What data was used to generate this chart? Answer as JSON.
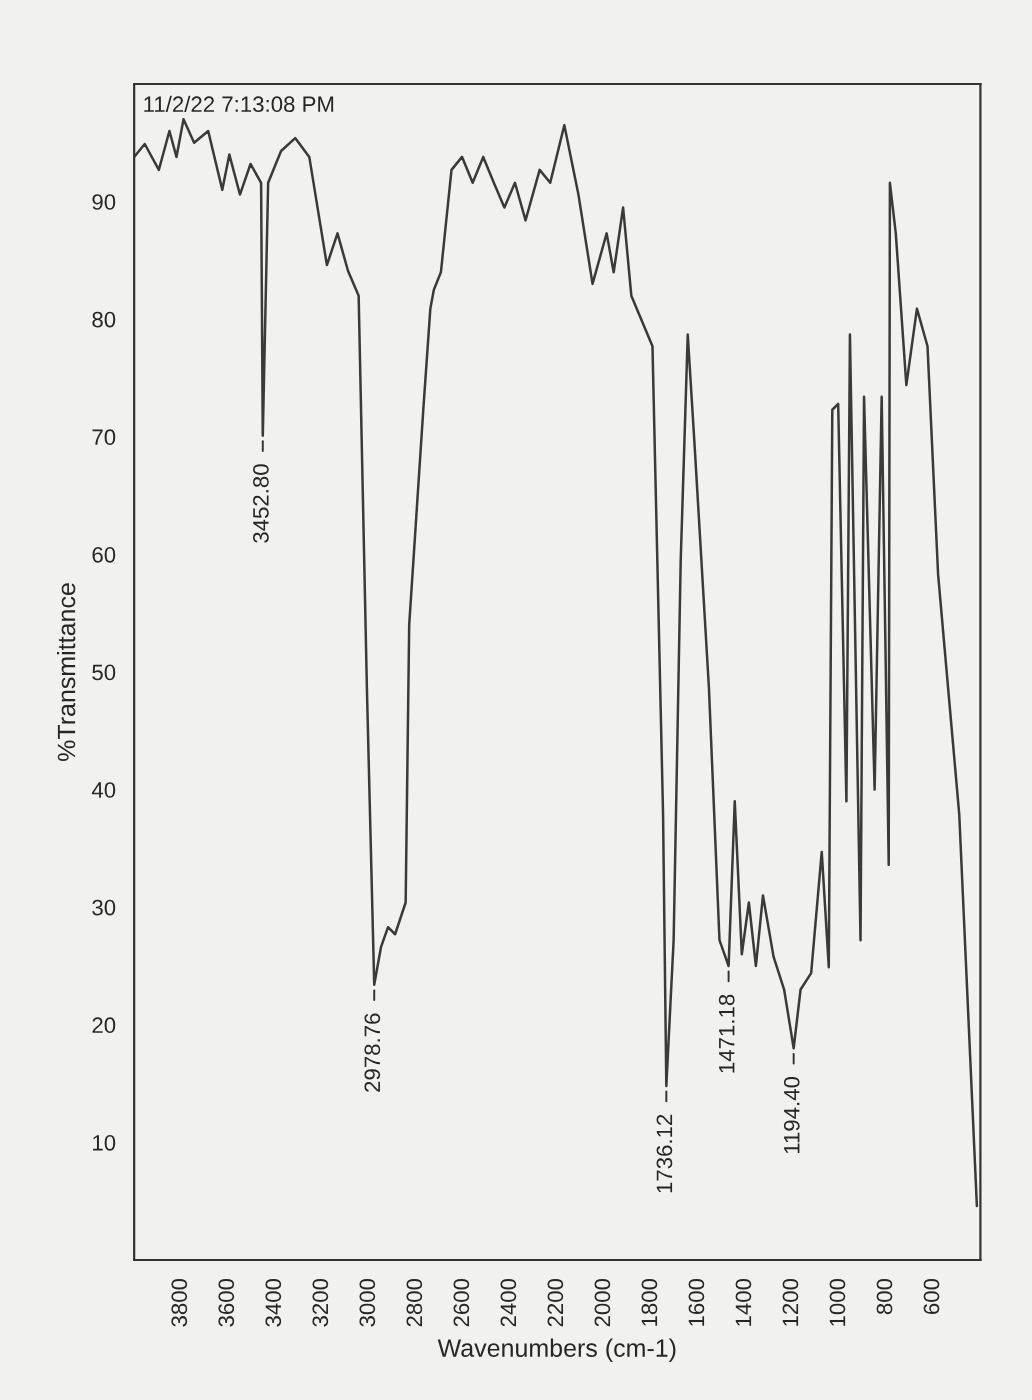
{
  "chart_data": {
    "type": "line",
    "xlabel": "Wavenumbers (cm-1)",
    "ylabel": "%Transmittance",
    "x": [
      4000,
      3955,
      3895,
      3850,
      3820,
      3790,
      3745,
      3685,
      3625,
      3595,
      3550,
      3505,
      3460,
      3452.8,
      3430,
      3375,
      3315,
      3255,
      3180,
      3135,
      3090,
      3045,
      3010,
      2978.76,
      2950,
      2920,
      2890,
      2845,
      2830,
      2770,
      2740,
      2725,
      2695,
      2650,
      2605,
      2560,
      2515,
      2470,
      2425,
      2380,
      2335,
      2275,
      2230,
      2170,
      2110,
      2050,
      1990,
      1960,
      1920,
      1885,
      1795,
      1750,
      1736.12,
      1705,
      1675,
      1645,
      1615,
      1555,
      1510,
      1471.18,
      1445,
      1415,
      1385,
      1355,
      1325,
      1280,
      1235,
      1194.4,
      1165,
      1120,
      1075,
      1045,
      1030,
      1005,
      970,
      955,
      910,
      895,
      850,
      820,
      790,
      785,
      760,
      715,
      670,
      625,
      580,
      490,
      415
    ],
    "series": [
      {
        "color": "#3a3a3a",
        "values": [
          93.8,
          94.9,
          92.7,
          96,
          93.8,
          97,
          95,
          96,
          91,
          94,
          90.6,
          93.2,
          91.6,
          70.1,
          91.6,
          94.3,
          95.4,
          93.8,
          84.6,
          87.3,
          84.1,
          82,
          48.7,
          23.4,
          26.6,
          28.3,
          27.7,
          30.4,
          54,
          72.3,
          80.9,
          82.5,
          84,
          92.7,
          93.8,
          91.6,
          93.8,
          91.6,
          89.5,
          91.6,
          88.4,
          92.7,
          91.6,
          96.5,
          90.6,
          83,
          87.3,
          84,
          89.5,
          82,
          77.7,
          37.9,
          14.8,
          27.2,
          59.4,
          78.7,
          69,
          48.7,
          27.2,
          25,
          39,
          26,
          30.4,
          25,
          31,
          25.8,
          23,
          18,
          23,
          24.4,
          34.7,
          24.9,
          72.3,
          72.8,
          39,
          78.7,
          27.2,
          73.4,
          40,
          73.4,
          33.6,
          91.6,
          87.3,
          74.4,
          80.9,
          77.7,
          58.3,
          37.9,
          4.6
        ]
      }
    ],
    "xlim": [
      4000,
      400
    ],
    "xticks": [
      3800,
      3600,
      3400,
      3200,
      3000,
      2800,
      2600,
      2400,
      2200,
      2000,
      1800,
      1600,
      1400,
      1200,
      1000,
      800,
      600
    ],
    "ylim": [
      0,
      100
    ],
    "yticks": [
      10,
      20,
      30,
      40,
      50,
      60,
      70,
      80,
      90
    ],
    "grid": false,
    "legend": false,
    "annotations": [
      {
        "text": "3452.80",
        "x": 3452.8,
        "y": 70.1
      },
      {
        "text": "2978.76",
        "x": 2978.76,
        "y": 23.4
      },
      {
        "text": "1736.12",
        "x": 1736.12,
        "y": 14.8
      },
      {
        "text": "1471.18",
        "x": 1471.18,
        "y": 25
      },
      {
        "text": "1194.40",
        "x": 1194.4,
        "y": 18
      },
      "11/2/22 7:13:08 PM"
    ]
  }
}
